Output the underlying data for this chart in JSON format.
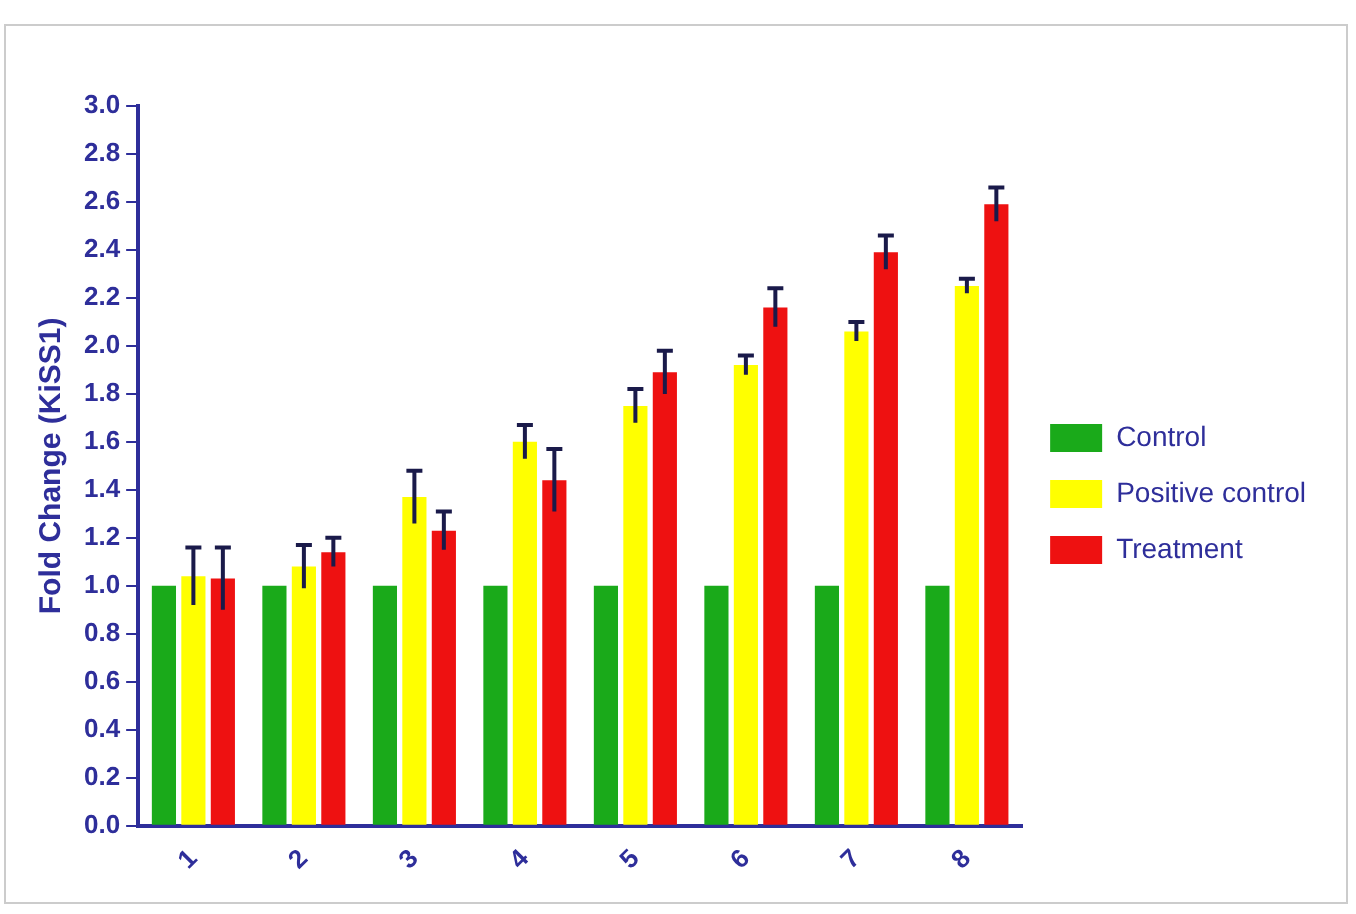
{
  "chart_data": {
    "type": "bar",
    "ylabel": "Fold Change (KiSS1)",
    "categories": [
      "1",
      "2",
      "3",
      "4",
      "5",
      "6",
      "7",
      "8"
    ],
    "series": [
      {
        "name": "Control",
        "color": "#1aaa1a",
        "values": [
          1,
          1,
          1,
          1,
          1,
          1,
          1,
          1
        ]
      },
      {
        "name": "Positive control",
        "color": "#ffff00",
        "values": [
          1.04,
          1.08,
          1.37,
          1.6,
          1.75,
          1.92,
          2.06,
          2.25
        ],
        "errors": [
          0.12,
          0.09,
          0.11,
          0.07,
          0.07,
          0.04,
          0.04,
          0.03
        ]
      },
      {
        "name": "Treatment",
        "color": "#ee1111",
        "values": [
          1.03,
          1.14,
          1.23,
          1.44,
          1.89,
          2.16,
          2.39,
          2.59
        ],
        "errors": [
          0.13,
          0.06,
          0.08,
          0.13,
          0.09,
          0.08,
          0.07,
          0.07
        ]
      }
    ],
    "ylim": [
      0,
      3
    ],
    "yticks": [
      {
        "value": 0,
        "label": "0.0"
      },
      0.2,
      0.4,
      0.6,
      0.8,
      {
        "value": 1,
        "label": "1.0"
      },
      1.2,
      1.4,
      1.6,
      1.8,
      {
        "value": 2,
        "label": "2.0"
      },
      2.2,
      2.4,
      2.6,
      2.8,
      {
        "value": 3,
        "label": "3.0"
      }
    ],
    "grid": false,
    "legend": "right"
  }
}
